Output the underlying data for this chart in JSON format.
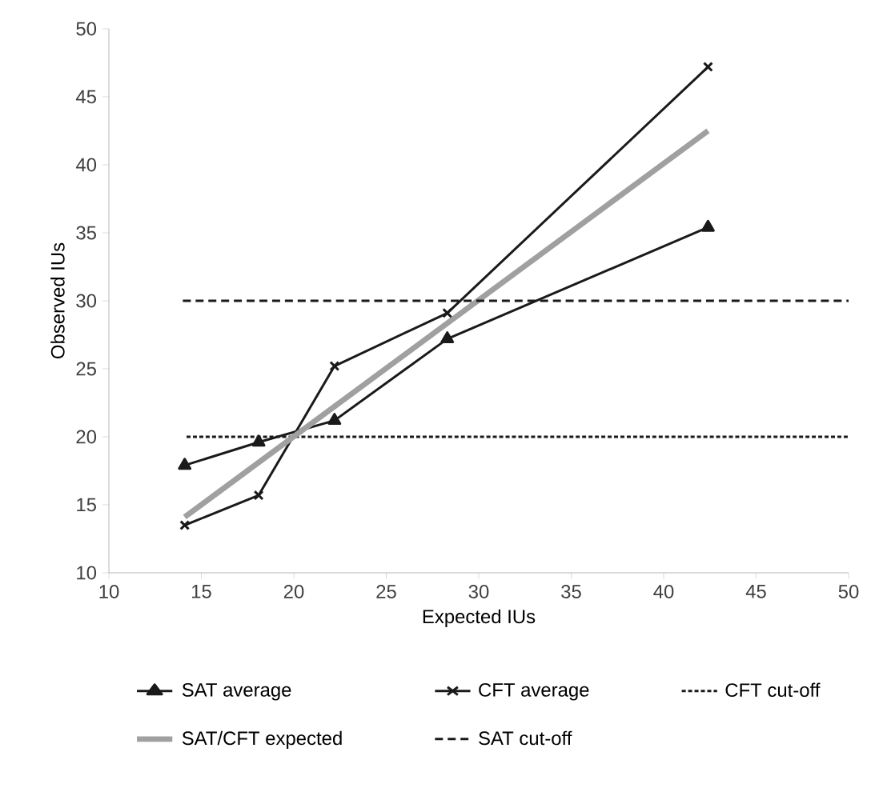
{
  "chart_data": {
    "type": "line",
    "xlabel": "Expected IUs",
    "ylabel": "Observed IUs",
    "xlim": [
      10,
      50
    ],
    "ylim": [
      10,
      50
    ],
    "xticks": [
      10,
      15,
      20,
      25,
      30,
      35,
      40,
      45,
      50
    ],
    "yticks": [
      10,
      15,
      20,
      25,
      30,
      35,
      40,
      45,
      50
    ],
    "grid": false,
    "legend": "bottom",
    "series": [
      {
        "name": "SAT average",
        "color": "#1a1a1a",
        "marker": "triangle",
        "line_style": "solid",
        "x": [
          14.1,
          18.1,
          22.2,
          28.3,
          42.4
        ],
        "values": [
          17.9,
          19.6,
          21.2,
          27.2,
          35.4
        ]
      },
      {
        "name": "CFT average",
        "color": "#1a1a1a",
        "marker": "cross",
        "line_style": "solid",
        "x": [
          14.1,
          18.1,
          22.2,
          28.3,
          42.4
        ],
        "values": [
          13.5,
          15.7,
          25.2,
          29.1,
          47.2
        ]
      },
      {
        "name": "CFT cut-off",
        "color": "#1a1a1a",
        "marker": "none",
        "line_style": "dotted",
        "x": [
          14.2,
          50
        ],
        "values": [
          20,
          20
        ]
      },
      {
        "name": "SAT/CFT expected",
        "color": "#a0a0a0",
        "marker": "none",
        "line_style": "solid",
        "x": [
          14.1,
          42.4
        ],
        "values": [
          14.1,
          42.5
        ]
      },
      {
        "name": "SAT cut-off",
        "color": "#1a1a1a",
        "marker": "none",
        "line_style": "dashed",
        "x": [
          14,
          50
        ],
        "values": [
          30,
          30
        ]
      }
    ]
  }
}
